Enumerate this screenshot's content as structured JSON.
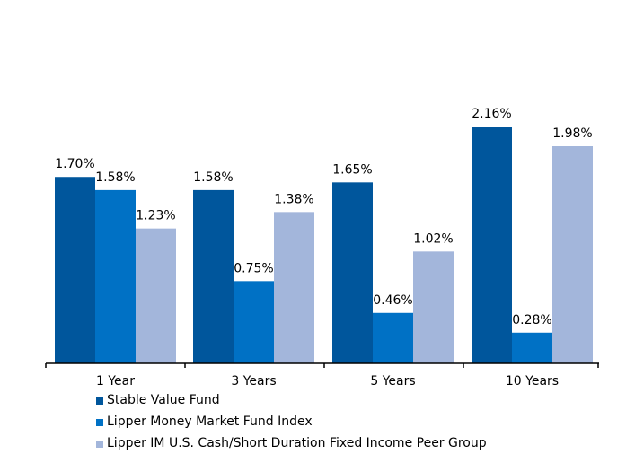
{
  "chart_data": {
    "type": "bar",
    "categories": [
      "1 Year",
      "3 Years",
      "5 Years",
      "10 Years"
    ],
    "series": [
      {
        "name": "Stable Value Fund",
        "color": "#00569C",
        "values": [
          1.7,
          1.58,
          1.65,
          2.16
        ],
        "labels": [
          "1.70%",
          "1.58%",
          "1.65%",
          "2.16%"
        ]
      },
      {
        "name": "Lipper Money Market Fund Index",
        "color": "#0071C5",
        "values": [
          1.58,
          0.75,
          0.46,
          0.28
        ],
        "labels": [
          "1.58%",
          "0.75%",
          "0.46%",
          "0.28%"
        ]
      },
      {
        "name": "Lipper IM U.S. Cash/Short Duration Fixed Income Peer Group",
        "color": "#A3B6DB",
        "values": [
          1.23,
          1.38,
          1.02,
          1.98
        ],
        "labels": [
          "1.23%",
          "1.38%",
          "1.02%",
          "1.98%"
        ]
      }
    ],
    "ylim": [
      0,
      2.16
    ],
    "grid": false,
    "legend_position": "bottom"
  }
}
